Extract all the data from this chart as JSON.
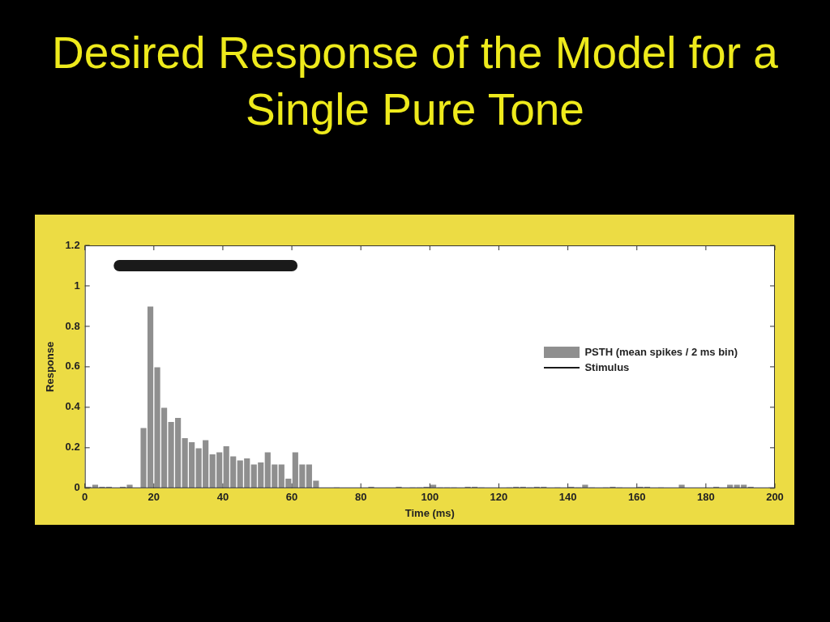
{
  "chart_data": {
    "type": "histogram",
    "title": "Desired Response of the Model for a Single Pure Tone",
    "xlabel": "Time (ms)",
    "ylabel": "Response",
    "bins": [
      0,
      2,
      4,
      6,
      8,
      10,
      12,
      14,
      16,
      18,
      20,
      22,
      24,
      26,
      28,
      30,
      32,
      34,
      36,
      38,
      40,
      42,
      44,
      46,
      48,
      50,
      52,
      54,
      56,
      58,
      60,
      62,
      64,
      66,
      68,
      70,
      72,
      74,
      76,
      78,
      80,
      82,
      84,
      86,
      88,
      90,
      92,
      94,
      96,
      98,
      100,
      102,
      104,
      106,
      108,
      110,
      112,
      114,
      116,
      118,
      120,
      122,
      124,
      126,
      128,
      130,
      132,
      134,
      136,
      138,
      140,
      142,
      144,
      146,
      148,
      150,
      152,
      154,
      156,
      158,
      160,
      162,
      164,
      166,
      168,
      170,
      172,
      174,
      176,
      178,
      180,
      182,
      184,
      186,
      188,
      190,
      192,
      194,
      196,
      198,
      200
    ],
    "series": [
      {
        "name": "PSTH (mean spikes / 2 ms bin)",
        "color": "#8f8f8f",
        "values": [
          0.01,
          0.02,
          0.01,
          0.01,
          0,
          0.01,
          0.02,
          0,
          0.3,
          0.9,
          0.6,
          0.4,
          0.33,
          0.35,
          0.25,
          0.23,
          0.2,
          0.24,
          0.17,
          0.18,
          0.21,
          0.16,
          0.14,
          0.15,
          0.12,
          0.13,
          0.18,
          0.12,
          0.12,
          0.05,
          0.18,
          0.12,
          0.12,
          0.04,
          0,
          0,
          0.005,
          0,
          0,
          0,
          0,
          0.01,
          0,
          0,
          0,
          0.01,
          0,
          0.005,
          0.005,
          0.01,
          0.02,
          0.005,
          0.005,
          0.005,
          0,
          0.01,
          0.01,
          0.005,
          0,
          0,
          0,
          0.005,
          0.01,
          0.01,
          0.005,
          0.01,
          0.01,
          0,
          0.005,
          0,
          0.01,
          0.005,
          0.02,
          0.005,
          0,
          0.005,
          0.01,
          0.005,
          0,
          0,
          0.01,
          0.01,
          0,
          0.005,
          0,
          0,
          0.02,
          0,
          0,
          0,
          0,
          0.01,
          0,
          0.02,
          0.02,
          0.02,
          0.01,
          0,
          0,
          0.005
        ]
      },
      {
        "name": "Stimulus",
        "type": "line",
        "color": "#1a1a1a",
        "x": [
          10,
          60
        ],
        "values": [
          1.1,
          1.1
        ]
      }
    ],
    "xlim": [
      0,
      200
    ],
    "xticks": [
      0,
      20,
      40,
      60,
      80,
      100,
      120,
      140,
      160,
      180,
      200
    ],
    "ylim": [
      0,
      1.2
    ],
    "yticks": [
      0,
      0.2,
      0.4,
      0.6,
      0.8,
      1,
      1.2
    ],
    "legend": "right",
    "marker": "none",
    "line_style": "solid"
  }
}
